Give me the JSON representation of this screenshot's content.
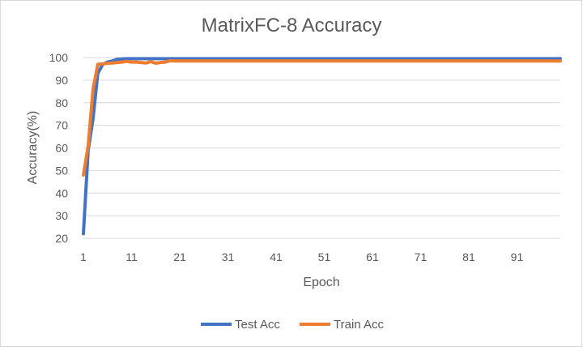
{
  "chart_data": {
    "type": "line",
    "title": "MatrixFC-8 Accuracy",
    "xlabel": "Epoch",
    "ylabel": "Accuracy(%)",
    "ylim": [
      20,
      100
    ],
    "xlim": [
      1,
      100
    ],
    "yticks": [
      20,
      30,
      40,
      50,
      60,
      70,
      80,
      90,
      100
    ],
    "xticks": [
      1,
      11,
      21,
      31,
      41,
      51,
      61,
      71,
      81,
      91
    ],
    "grid": "horizontal",
    "legend_position": "bottom",
    "series": [
      {
        "name": "Test Acc",
        "color": "#4472c4",
        "x": [
          1,
          2,
          3,
          4,
          5,
          6,
          7,
          8,
          9,
          10,
          15,
          20,
          30,
          40,
          50,
          60,
          70,
          80,
          90,
          100
        ],
        "values": [
          22,
          59,
          73,
          93,
          97,
          98,
          98.5,
          99.2,
          99.4,
          99.5,
          99.5,
          99.5,
          99.5,
          99.5,
          99.5,
          99.5,
          99.5,
          99.5,
          99.5,
          99.5
        ]
      },
      {
        "name": "Train Acc",
        "color": "#ed7d31",
        "x": [
          1,
          2,
          3,
          4,
          5,
          6,
          7,
          8,
          9,
          10,
          11,
          12,
          13,
          14,
          15,
          16,
          17,
          18,
          19,
          20,
          25,
          30,
          40,
          50,
          60,
          70,
          80,
          90,
          100
        ],
        "values": [
          48,
          61,
          86,
          97,
          97.2,
          97.5,
          97.6,
          97.8,
          98,
          98.3,
          98,
          98,
          97.8,
          97.6,
          98.2,
          97.5,
          97.8,
          98,
          98.6,
          98.5,
          98.5,
          98.5,
          98.5,
          98.5,
          98.5,
          98.5,
          98.5,
          98.5,
          98.5
        ]
      }
    ]
  }
}
